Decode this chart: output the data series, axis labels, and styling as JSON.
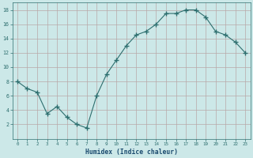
{
  "x": [
    0,
    1,
    2,
    3,
    4,
    5,
    6,
    7,
    8,
    9,
    10,
    11,
    12,
    13,
    14,
    15,
    16,
    17,
    18,
    19,
    20,
    21,
    22,
    23
  ],
  "y": [
    8,
    7,
    6.5,
    3.5,
    4.5,
    3,
    2,
    1.5,
    6,
    9,
    11,
    13,
    14.5,
    15,
    16,
    17.5,
    17.5,
    18,
    18,
    17,
    15,
    14.5,
    13.5,
    12
  ],
  "line_color": "#2d6e6e",
  "marker": "+",
  "marker_size": 4,
  "bg_color": "#cce8e8",
  "grid_color": "#b8a8a8",
  "xlabel": "Humidex (Indice chaleur)",
  "xlabel_color": "#1a4a6e",
  "ylim": [
    0,
    19
  ],
  "xlim": [
    -0.5,
    23.5
  ],
  "yticks": [
    2,
    4,
    6,
    8,
    10,
    12,
    14,
    16,
    18
  ],
  "xticks": [
    0,
    1,
    2,
    3,
    4,
    5,
    6,
    7,
    8,
    9,
    10,
    11,
    12,
    13,
    14,
    15,
    16,
    17,
    18,
    19,
    20,
    21,
    22,
    23
  ],
  "tick_label_color": "#2d6e6e",
  "spine_color": "#2d6e6e"
}
